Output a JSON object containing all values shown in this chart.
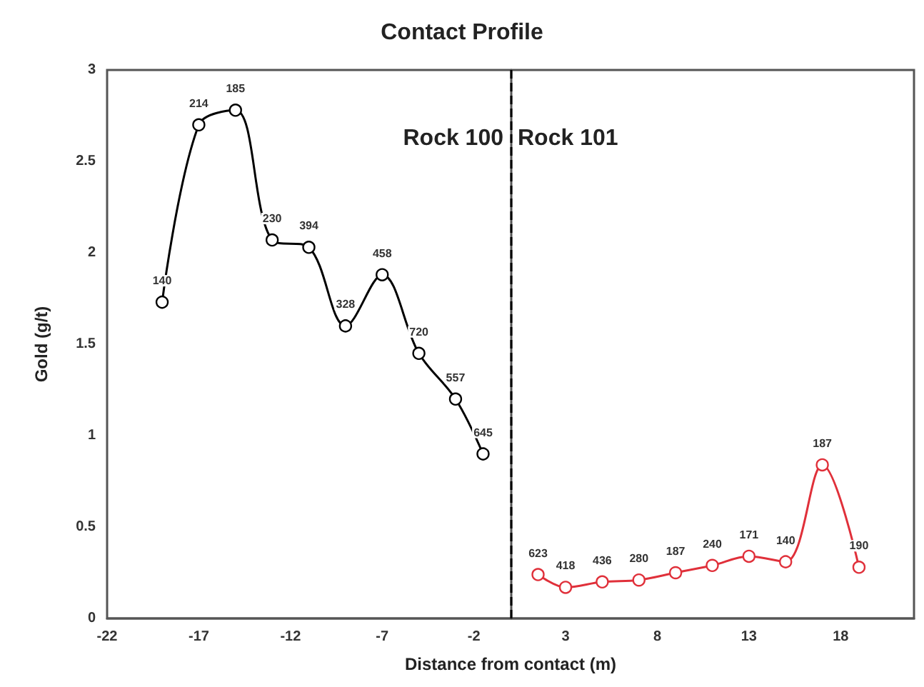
{
  "chart_data": {
    "type": "line",
    "title": "Contact Profile",
    "xlabel": "Distance from contact (m)",
    "ylabel": "Gold (g/t)",
    "xlim": [
      -22,
      22
    ],
    "xticks": [
      -22,
      -17,
      -12,
      -7,
      -2,
      3,
      8,
      13,
      18
    ],
    "ylim": [
      0,
      3
    ],
    "yticks": [
      0,
      0.5,
      1,
      1.5,
      2,
      2.5,
      3
    ],
    "grid": false,
    "marker": "circle",
    "line_style": "solid",
    "series": [
      {
        "color": "#000000",
        "x": [
          -19,
          -17,
          -15,
          -13,
          -11,
          -9,
          -7,
          -5,
          -3,
          -1.5
        ],
        "values": [
          1.73,
          2.7,
          2.78,
          2.07,
          2.03,
          1.6,
          1.88,
          1.45,
          1.2,
          0.9
        ]
      },
      {
        "color": "#e0303a",
        "x": [
          1.5,
          3,
          5,
          7,
          9,
          11,
          13,
          15,
          17,
          19
        ],
        "values": [
          0.24,
          0.17,
          0.2,
          0.21,
          0.25,
          0.29,
          0.34,
          0.31,
          0.84,
          0.28
        ]
      }
    ],
    "ref_lines": [
      {
        "axis": "x",
        "value": 0,
        "color": "#000000",
        "line_style": "dashed"
      }
    ],
    "annotations": [
      "Rock 100",
      "Rock 101",
      {
        "text": "140",
        "x": -19,
        "y": 1.73
      },
      {
        "text": "214",
        "x": -17,
        "y": 2.7
      },
      {
        "text": "185",
        "x": -15,
        "y": 2.78
      },
      {
        "text": "230",
        "x": -13,
        "y": 2.07
      },
      {
        "text": "394",
        "x": -11,
        "y": 2.03
      },
      {
        "text": "328",
        "x": -9,
        "y": 1.6
      },
      {
        "text": "458",
        "x": -7,
        "y": 1.88
      },
      {
        "text": "720",
        "x": -5,
        "y": 1.45
      },
      {
        "text": "557",
        "x": -3,
        "y": 1.2
      },
      {
        "text": "645",
        "x": -1.5,
        "y": 0.9
      },
      {
        "text": "623",
        "x": 1.5,
        "y": 0.24
      },
      {
        "text": "418",
        "x": 3,
        "y": 0.17
      },
      {
        "text": "436",
        "x": 5,
        "y": 0.2
      },
      {
        "text": "280",
        "x": 7,
        "y": 0.21
      },
      {
        "text": "187",
        "x": 9,
        "y": 0.25
      },
      {
        "text": "240",
        "x": 11,
        "y": 0.29
      },
      {
        "text": "171",
        "x": 13,
        "y": 0.34
      },
      {
        "text": "140",
        "x": 15,
        "y": 0.31
      },
      {
        "text": "187",
        "x": 17,
        "y": 0.84
      },
      {
        "text": "190",
        "x": 19,
        "y": 0.28
      }
    ]
  }
}
